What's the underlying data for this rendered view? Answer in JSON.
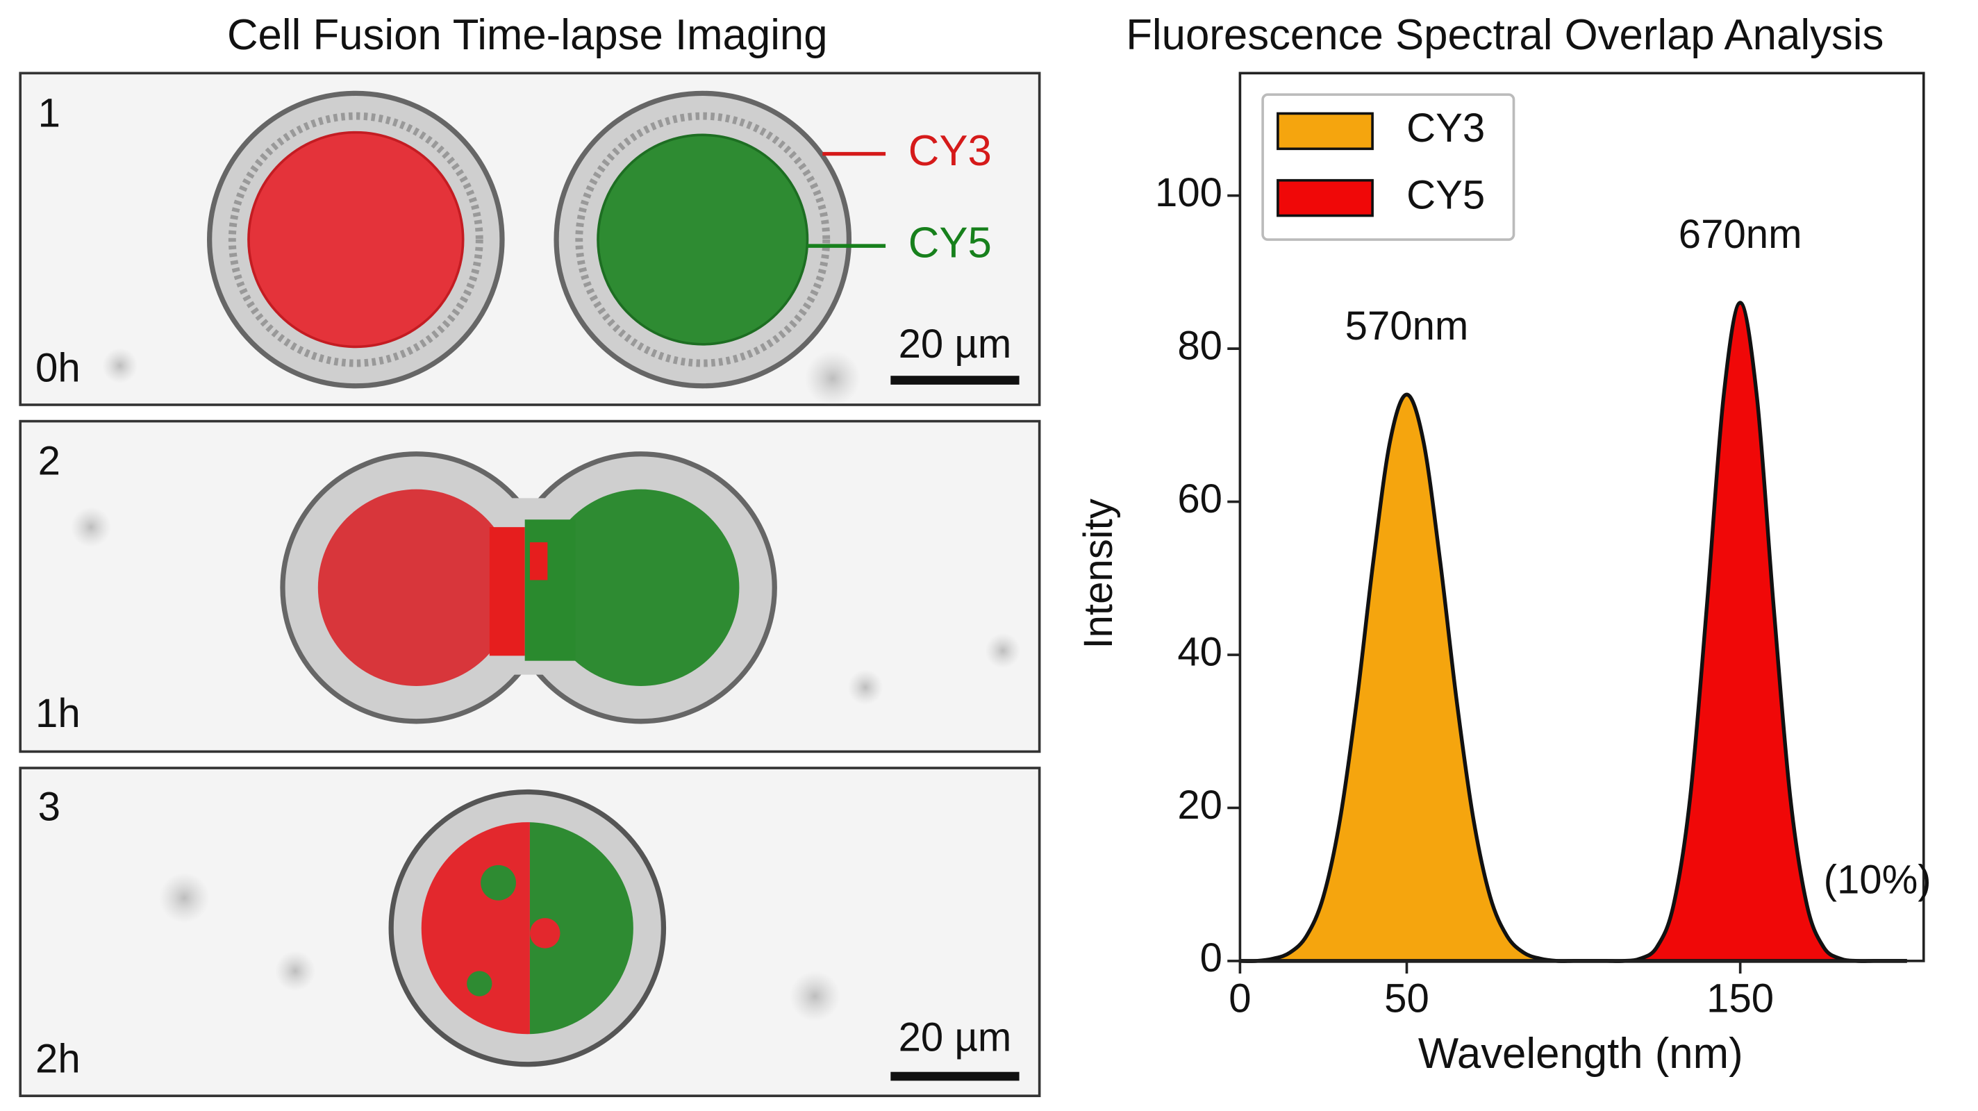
{
  "microscopy": {
    "title": "Cell Fusion Time-lapse Imaging",
    "panels": [
      {
        "index": "1",
        "time": "0h",
        "scale_bar": "20 µm"
      },
      {
        "index": "2",
        "time": "1h"
      },
      {
        "index": "3",
        "time": "2h",
        "scale_bar": "20 µm"
      }
    ],
    "labels": [
      "CY3",
      "CY5"
    ]
  },
  "chart_data": {
    "type": "area",
    "title": "Fluorescence Spectral Overlap Analysis",
    "x_label": "Wavelength (nm)",
    "y_label": "Intensity",
    "x": [
      0,
      5,
      10,
      15,
      20,
      25,
      30,
      35,
      40,
      45,
      50,
      55,
      60,
      65,
      70,
      75,
      80,
      85,
      90,
      95,
      100,
      105,
      110,
      115,
      120,
      125,
      130,
      135,
      140,
      145,
      150,
      155,
      160,
      165,
      170,
      175,
      180,
      185,
      190,
      195,
      200
    ],
    "series": [
      {
        "name": "CY3",
        "color": "#f5a50e",
        "values": [
          0,
          0,
          0.3,
          1.1,
          3.3,
          8.4,
          18.5,
          33.9,
          52.3,
          67.9,
          74,
          67.9,
          52.3,
          33.9,
          18.5,
          8.4,
          3.3,
          1.1,
          0.3,
          0,
          0,
          0,
          0,
          0,
          0,
          0,
          0,
          0,
          0,
          0,
          0,
          0,
          0,
          0,
          0,
          0,
          0,
          0,
          0,
          0,
          0
        ]
      },
      {
        "name": "CY5",
        "color": "#f00808",
        "values": [
          0,
          0,
          0,
          0,
          0,
          0,
          0,
          0,
          0,
          0,
          0,
          0,
          0,
          0,
          0,
          0,
          0,
          0,
          0,
          0,
          0,
          0,
          0,
          0,
          0.3,
          1.8,
          7.3,
          21.4,
          46.4,
          73.7,
          86,
          73.7,
          46.4,
          21.4,
          7.3,
          1.8,
          0.3,
          0,
          0,
          0,
          0
        ]
      }
    ],
    "annotations": [
      "570nm",
      "670nm",
      "(10%)"
    ],
    "xlim": [
      0,
      205
    ],
    "xticks": [
      0,
      50,
      150
    ],
    "ylim": [
      0,
      116
    ],
    "yticks": [
      0,
      20,
      40,
      60,
      80,
      100
    ],
    "legend": "upper left",
    "grid": false
  }
}
